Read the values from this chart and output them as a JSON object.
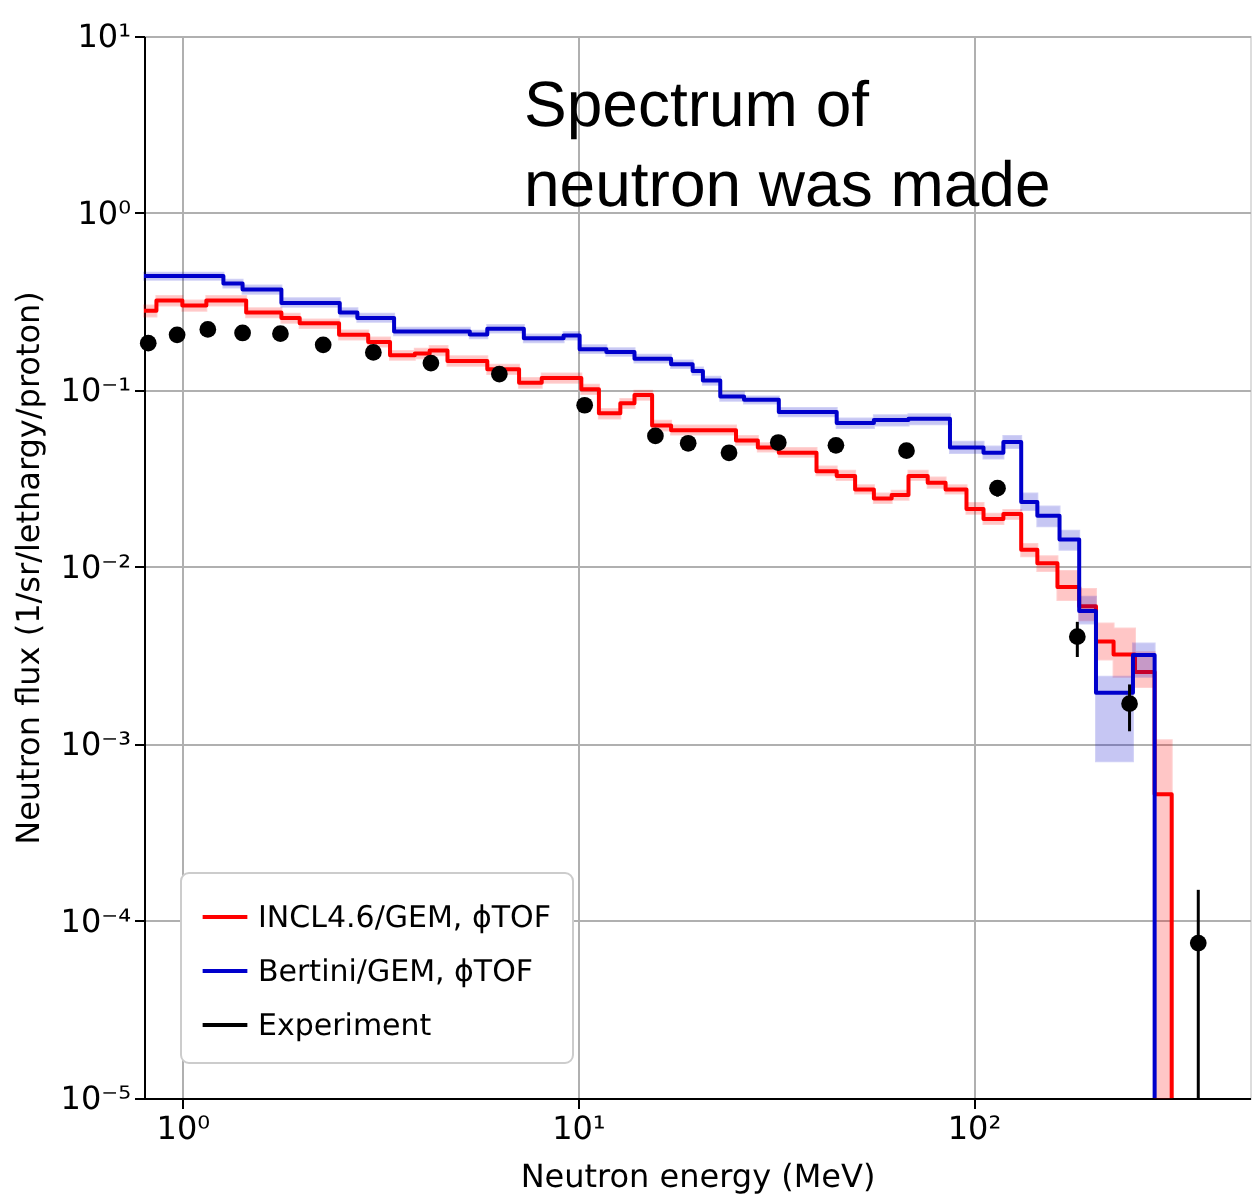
{
  "chart_data": {
    "type": "step",
    "xlabel": "Neutron energy (MeV)",
    "ylabel": "Neutron flux (1/sr/lethargy/proton)",
    "annotations": [
      "Spectrum of\nneutron was made"
    ],
    "log": "xy",
    "grid": true,
    "legend": "bottom left",
    "xlim": [
      0.8,
      500
    ],
    "ylim": [
      1e-05,
      10
    ],
    "xticks": [
      {
        "value": 1,
        "label": "10⁰"
      },
      {
        "value": 10,
        "label": "10¹"
      },
      {
        "value": 100,
        "label": "10²"
      }
    ],
    "yticks": [
      {
        "value": 1e-05,
        "label": "10⁻⁵"
      },
      {
        "value": 0.0001,
        "label": "10⁻⁴"
      },
      {
        "value": 0.001,
        "label": "10⁻³"
      },
      {
        "value": 0.01,
        "label": "10⁻²"
      },
      {
        "value": 0.1,
        "label": "10⁻¹"
      },
      {
        "value": 1,
        "label": "10⁰"
      },
      {
        "value": 10,
        "label": "10¹"
      }
    ],
    "series": [
      {
        "name": "INCL4.6/GEM, ϕTOF",
        "color": "#ff0000",
        "x": [
          0.8,
          0.86,
          1.0,
          1.15,
          1.45,
          1.78,
          1.98,
          2.49,
          2.95,
          3.35,
          3.87,
          4.22,
          4.68,
          5.9,
          7.1,
          8.1,
          10.2,
          11.3,
          12.8,
          13.9,
          15.4,
          17.2,
          25.1,
          28.5,
          32.2,
          40.1,
          45.1,
          50.2,
          56,
          62.1,
          68.5,
          76.6,
          85,
          96,
          106,
          119,
          132,
          145,
          163,
          185,
          204,
          226,
          256,
          287,
          317
        ],
        "values": [
          0.28,
          0.32,
          0.3,
          0.32,
          0.274,
          0.255,
          0.238,
          0.205,
          0.187,
          0.157,
          0.161,
          0.167,
          0.146,
          0.131,
          0.11,
          0.117,
          0.101,
          0.0738,
          0.0843,
          0.0938,
          0.063,
          0.0592,
          0.0518,
          0.0474,
          0.0442,
          0.0348,
          0.0327,
          0.0274,
          0.0244,
          0.0255,
          0.0327,
          0.0299,
          0.0274,
          0.0213,
          0.0187,
          0.0199,
          0.0125,
          0.0105,
          0.0077,
          0.006,
          0.0038,
          0.0032,
          0.00255,
          0.00052,
          1e-05
        ],
        "upper": [
          0.3,
          0.34,
          0.32,
          0.34,
          0.29,
          0.27,
          0.25,
          0.217,
          0.198,
          0.166,
          0.171,
          0.177,
          0.155,
          0.139,
          0.117,
          0.124,
          0.107,
          0.078,
          0.089,
          0.099,
          0.067,
          0.063,
          0.055,
          0.05,
          0.047,
          0.037,
          0.035,
          0.029,
          0.026,
          0.027,
          0.035,
          0.032,
          0.029,
          0.023,
          0.02,
          0.021,
          0.0135,
          0.0115,
          0.0095,
          0.0075,
          0.0048,
          0.0045,
          0.0033,
          0.00105,
          1e-05
        ],
        "lower": [
          0.26,
          0.3,
          0.28,
          0.3,
          0.258,
          0.24,
          0.224,
          0.193,
          0.176,
          0.148,
          0.151,
          0.157,
          0.137,
          0.123,
          0.103,
          0.11,
          0.095,
          0.069,
          0.079,
          0.088,
          0.059,
          0.056,
          0.049,
          0.045,
          0.042,
          0.033,
          0.031,
          0.026,
          0.023,
          0.024,
          0.031,
          0.028,
          0.026,
          0.02,
          0.0175,
          0.0187,
          0.0115,
          0.0095,
          0.0065,
          0.005,
          0.003,
          0.0024,
          0.0021,
          1e-05,
          1e-05
        ]
      },
      {
        "name": "Bertini/GEM, ϕTOF",
        "color": "#0000cc",
        "x": [
          0.8,
          1.27,
          1.42,
          1.78,
          2.5,
          2.77,
          3.43,
          5.33,
          5.9,
          7.3,
          9.2,
          10.1,
          11.8,
          13.9,
          17.2,
          19.5,
          20.7,
          22.9,
          26.3,
          32.2,
          45.1,
          56,
          68.5,
          87.2,
          106,
          119,
          132,
          145,
          165,
          185,
          204,
          253,
          287
        ],
        "values": [
          0.44,
          0.4,
          0.37,
          0.31,
          0.274,
          0.255,
          0.214,
          0.206,
          0.222,
          0.196,
          0.203,
          0.17,
          0.164,
          0.15,
          0.14,
          0.128,
          0.113,
          0.092,
          0.088,
          0.075,
          0.065,
          0.0676,
          0.0688,
          0.0474,
          0.0442,
          0.0509,
          0.0233,
          0.0195,
          0.0143,
          0.00565,
          0.00195,
          0.00318,
          1e-05
        ],
        "upper": [
          0.46,
          0.42,
          0.39,
          0.33,
          0.29,
          0.27,
          0.225,
          0.216,
          0.233,
          0.206,
          0.213,
          0.179,
          0.172,
          0.158,
          0.147,
          0.134,
          0.119,
          0.097,
          0.092,
          0.079,
          0.069,
          0.072,
          0.073,
          0.051,
          0.048,
          0.055,
          0.026,
          0.022,
          0.016,
          0.0068,
          0.0024,
          0.0037,
          1e-05
        ],
        "lower": [
          0.42,
          0.38,
          0.35,
          0.295,
          0.26,
          0.243,
          0.204,
          0.196,
          0.211,
          0.186,
          0.193,
          0.162,
          0.156,
          0.143,
          0.133,
          0.122,
          0.107,
          0.087,
          0.084,
          0.071,
          0.061,
          0.063,
          0.064,
          0.044,
          0.041,
          0.047,
          0.021,
          0.017,
          0.0125,
          0.0048,
          0.0008,
          0.0024,
          1e-05
        ]
      },
      {
        "name": "Experiment",
        "type": "scatter",
        "color": "#000000",
        "marker": "circle",
        "x": [
          0.82,
          0.97,
          1.16,
          1.42,
          1.77,
          2.27,
          3.04,
          4.25,
          6.33,
          10.4,
          15.7,
          19.0,
          24.1,
          32.1,
          44.9,
          67.7,
          115,
          183,
          248,
          370
        ],
        "values": [
          0.184,
          0.205,
          0.22,
          0.21,
          0.208,
          0.18,
          0.163,
          0.142,
          0.123,
          0.082,
          0.055,
          0.05,
          0.0442,
          0.0505,
          0.0487,
          0.0454,
          0.0279,
          0.00404,
          0.00169,
          7.5e-05
        ],
        "errors": [
          null,
          null,
          null,
          null,
          null,
          null,
          null,
          null,
          null,
          null,
          null,
          null,
          null,
          null,
          null,
          null,
          [
            0.025,
            0.031
          ],
          [
            0.0031,
            0.0049
          ],
          [
            0.00118,
            0.00217
          ],
          [
            1e-05,
            0.00015
          ]
        ]
      }
    ]
  }
}
